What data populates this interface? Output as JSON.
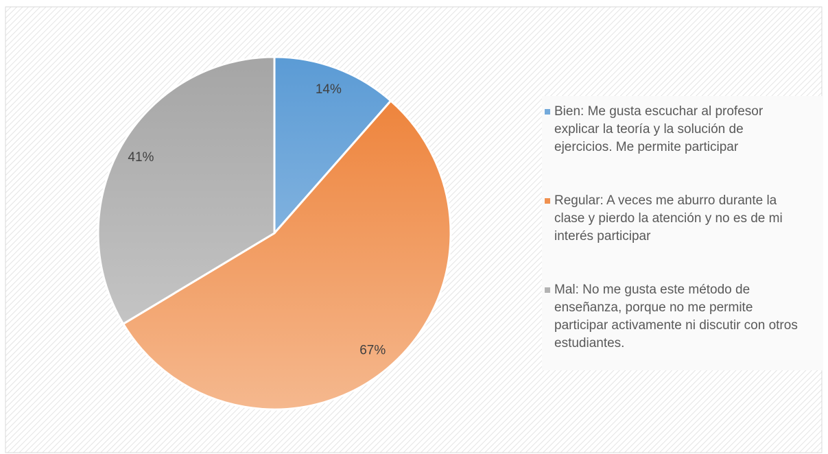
{
  "chart_data": {
    "type": "pie",
    "categories": [
      "Bien: Me gusta escuchar al profesor explicar la teoría y la solución de ejercicios. Me permite participar",
      "Regular: A veces me aburro durante la clase y pierdo la atención y no es de mi interés participar",
      "Mal: No me gusta este método de enseñanza, porque no me permite participar activamente ni discutir con otros estudiantes."
    ],
    "values": [
      14,
      67,
      41
    ],
    "value_labels": [
      "14%",
      "67%",
      "41%"
    ],
    "colors": [
      "#5b9bd5",
      "#ed7d31",
      "#a5a5a5"
    ],
    "legend": "right"
  }
}
